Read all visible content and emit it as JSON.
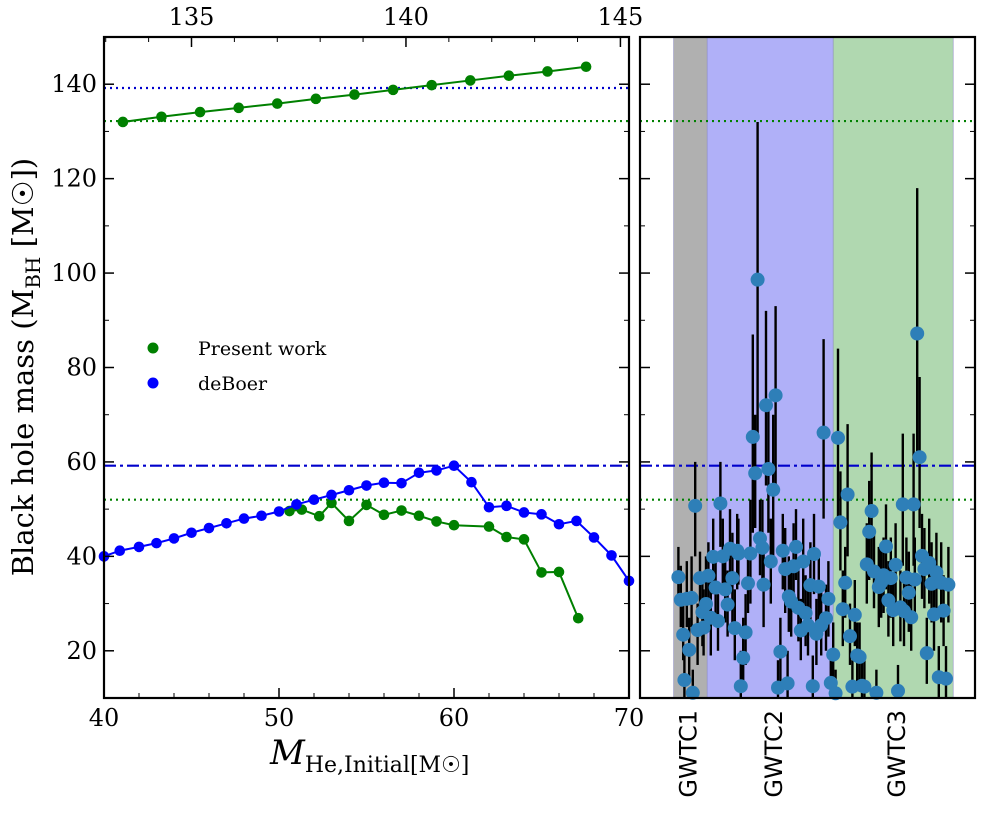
{
  "chart_data": [
    {
      "type": "line",
      "ylabel": "Black hole mass (M",
      "ylabel_sub": "BH",
      "ylabel_unit": "[M",
      "ylabel_sun": "☉",
      "ylabel_end": "])",
      "xlabel": "M",
      "xlabel_sub": "He,Initial[M",
      "xlabel_sun": "☉",
      "xlabel_end": "]",
      "xlim": [
        40,
        70
      ],
      "ylim": [
        10,
        150
      ],
      "xticks": [
        40,
        50,
        60,
        70
      ],
      "yticks": [
        20,
        40,
        60,
        80,
        100,
        120,
        140
      ],
      "top_xlim": [
        132.96,
        145.2
      ],
      "top_xticks": [
        135,
        140,
        145
      ],
      "legend_position": "center-left",
      "series": [
        {
          "name": "Present work",
          "color": "#008000",
          "points": [
            [
              50.6,
              49.6
            ],
            [
              51.3,
              49.9
            ],
            [
              52.3,
              48.5
            ],
            [
              53.0,
              51.3
            ],
            [
              54.0,
              47.5
            ],
            [
              55.0,
              50.9
            ],
            [
              56.0,
              48.8
            ],
            [
              57.0,
              49.7
            ],
            [
              58.0,
              48.6
            ],
            [
              59.0,
              47.4
            ],
            [
              60.0,
              46.6
            ],
            [
              62.0,
              46.3
            ],
            [
              63.0,
              44.1
            ],
            [
              64.0,
              43.6
            ],
            [
              65.0,
              36.6
            ],
            [
              66.0,
              36.7
            ],
            [
              67.1,
              26.9
            ]
          ]
        },
        {
          "name": "deBoer",
          "color": "#0000ff",
          "points": [
            [
              40.0,
              40.0
            ],
            [
              40.9,
              41.2
            ],
            [
              42.0,
              42.0
            ],
            [
              43.0,
              42.8
            ],
            [
              44.0,
              43.8
            ],
            [
              45.0,
              45.0
            ],
            [
              46.0,
              46.0
            ],
            [
              47.0,
              47.0
            ],
            [
              48.0,
              48.0
            ],
            [
              49.0,
              48.6
            ],
            [
              50.0,
              49.5
            ],
            [
              51.0,
              51.0
            ],
            [
              52.0,
              52.0
            ],
            [
              53.0,
              53.0
            ],
            [
              54.0,
              54.0
            ],
            [
              55.0,
              55.0
            ],
            [
              56.0,
              55.6
            ],
            [
              57.0,
              55.5
            ],
            [
              58.0,
              57.7
            ],
            [
              59.0,
              58.2
            ],
            [
              60.0,
              59.2
            ],
            [
              61.0,
              55.7
            ],
            [
              62.0,
              50.4
            ],
            [
              63.0,
              50.7
            ],
            [
              64.0,
              49.3
            ],
            [
              65.0,
              48.9
            ],
            [
              66.0,
              46.8
            ],
            [
              67.0,
              47.5
            ],
            [
              68.0,
              44.0
            ],
            [
              69.0,
              40.2
            ],
            [
              70.0,
              34.8
            ]
          ]
        },
        {
          "name": "",
          "axis": "top",
          "color": "#008000",
          "points": [
            [
              133.4,
              132.0
            ],
            [
              134.3,
              133.1
            ],
            [
              135.2,
              134.1
            ],
            [
              136.1,
              135.0
            ],
            [
              137.0,
              135.9
            ],
            [
              137.9,
              136.9
            ],
            [
              138.8,
              137.8
            ],
            [
              139.7,
              138.8
            ],
            [
              140.6,
              139.8
            ],
            [
              141.5,
              140.8
            ],
            [
              142.4,
              141.8
            ],
            [
              143.3,
              142.7
            ],
            [
              144.2,
              143.7
            ]
          ]
        }
      ],
      "hlines": [
        {
          "y": 139.2,
          "style": "dotted",
          "color": "#0000cc"
        },
        {
          "y": 132.2,
          "style": "dotted",
          "color": "#008000"
        },
        {
          "y": 59.2,
          "style": "dashdot",
          "color": "#0000cc"
        },
        {
          "y": 52.0,
          "style": "dotted",
          "color": "#008000"
        }
      ]
    },
    {
      "type": "scatter",
      "ylim": [
        10,
        150
      ],
      "xlim": [
        0,
        10
      ],
      "error_bar_color": "#000000",
      "marker_color": "#2e7fb8",
      "bands": [
        {
          "label": "GWTC1",
          "x0": 0.18,
          "x1": 0.46,
          "color": "#b0b0b0"
        },
        {
          "label": "GWTC2",
          "x0": 0.46,
          "x1": 1.51,
          "color": "#b0b0f8"
        },
        {
          "label": "GWTC3",
          "x0": 1.51,
          "x1": 2.51,
          "color": "#b0d8b0"
        }
      ],
      "hlines": [
        {
          "y": 132.2,
          "style": "dotted",
          "color": "#008000"
        },
        {
          "y": 59.2,
          "style": "dashdot",
          "color": "#0000cc"
        },
        {
          "y": 52.0,
          "style": "dotted",
          "color": "#008000"
        }
      ],
      "events": [
        [
          0.22,
          35.6,
          31,
          42
        ],
        [
          0.24,
          30.8,
          25,
          38
        ],
        [
          0.26,
          23.4,
          18,
          30
        ],
        [
          0.27,
          13.8,
          10,
          19
        ],
        [
          0.29,
          31.0,
          25,
          39
        ],
        [
          0.31,
          20.2,
          14,
          27
        ],
        [
          0.33,
          31.2,
          25,
          40
        ],
        [
          0.34,
          11.1,
          9,
          16
        ],
        [
          0.36,
          50.7,
          40,
          60
        ],
        [
          0.38,
          24.4,
          17,
          30
        ],
        [
          0.4,
          35.4,
          28,
          41
        ],
        [
          0.42,
          28.2,
          21,
          35
        ],
        [
          0.43,
          24.9,
          19,
          33
        ],
        [
          0.45,
          29.9,
          24,
          40
        ],
        [
          0.47,
          35.9,
          28,
          43
        ],
        [
          0.49,
          27.0,
          19,
          37
        ],
        [
          0.51,
          39.9,
          32,
          48
        ],
        [
          0.53,
          33.4,
          26,
          40
        ],
        [
          0.55,
          26.3,
          20,
          32
        ],
        [
          0.57,
          51.2,
          42,
          60
        ],
        [
          0.59,
          40.0,
          33,
          48
        ],
        [
          0.61,
          33.0,
          26,
          40
        ],
        [
          0.63,
          29.8,
          23,
          37
        ],
        [
          0.65,
          41.6,
          33,
          50
        ],
        [
          0.67,
          35.4,
          25,
          45
        ],
        [
          0.69,
          24.8,
          18,
          33
        ],
        [
          0.71,
          41.2,
          33,
          49
        ],
        [
          0.72,
          40.6,
          34,
          48
        ],
        [
          0.74,
          12.5,
          10,
          20
        ],
        [
          0.76,
          18.5,
          12,
          27
        ],
        [
          0.78,
          23.9,
          17,
          32
        ],
        [
          0.8,
          34.3,
          28,
          40
        ],
        [
          0.82,
          40.6,
          30,
          52
        ],
        [
          0.84,
          65.3,
          45,
          87
        ],
        [
          0.86,
          57.6,
          46,
          70
        ],
        [
          0.88,
          98.6,
          66,
          132
        ],
        [
          0.9,
          43.8,
          36,
          52
        ],
        [
          0.92,
          41.8,
          33,
          52
        ],
        [
          0.93,
          34.0,
          25,
          43
        ],
        [
          0.95,
          72.0,
          55,
          92
        ],
        [
          0.97,
          58.5,
          45,
          72
        ],
        [
          0.99,
          38.9,
          30,
          48
        ],
        [
          1.01,
          54.1,
          40,
          70
        ],
        [
          1.03,
          74.1,
          55,
          93
        ],
        [
          1.05,
          12.2,
          9,
          18
        ],
        [
          1.07,
          19.8,
          13,
          27
        ],
        [
          1.09,
          41.2,
          33,
          49
        ],
        [
          1.11,
          37.3,
          28,
          46
        ],
        [
          1.13,
          13.1,
          9,
          20
        ],
        [
          1.14,
          31.5,
          24,
          40
        ],
        [
          1.16,
          30.4,
          23,
          38
        ],
        [
          1.18,
          37.9,
          29,
          47
        ],
        [
          1.2,
          42.0,
          35,
          50
        ],
        [
          1.22,
          29.1,
          22,
          37
        ],
        [
          1.24,
          24.3,
          18,
          31
        ],
        [
          1.26,
          38.9,
          30,
          48
        ],
        [
          1.28,
          28.0,
          21,
          36
        ],
        [
          1.3,
          25.4,
          19,
          33
        ],
        [
          1.32,
          33.9,
          25,
          43
        ],
        [
          1.34,
          12.5,
          9,
          19
        ],
        [
          1.35,
          40.5,
          32,
          49
        ],
        [
          1.37,
          23.6,
          17,
          31
        ],
        [
          1.39,
          33.6,
          25,
          41
        ],
        [
          1.41,
          25.4,
          19,
          33
        ],
        [
          1.43,
          66.2,
          48,
          86
        ],
        [
          1.45,
          26.9,
          20,
          34
        ],
        [
          1.47,
          31.0,
          23,
          39
        ],
        [
          1.49,
          13.2,
          9,
          19
        ],
        [
          1.51,
          19.2,
          13,
          26
        ],
        [
          1.53,
          11.0,
          9,
          16
        ],
        [
          1.55,
          65.1,
          48,
          84
        ],
        [
          1.57,
          47.2,
          37,
          58
        ],
        [
          1.59,
          28.8,
          21,
          37
        ],
        [
          1.61,
          34.4,
          27,
          42
        ],
        [
          1.63,
          53.1,
          40,
          68
        ],
        [
          1.65,
          23.1,
          17,
          30
        ],
        [
          1.67,
          12.4,
          9,
          18
        ],
        [
          1.69,
          27.6,
          21,
          35
        ],
        [
          1.71,
          19.0,
          13,
          26
        ],
        [
          1.73,
          18.7,
          13,
          26
        ],
        [
          1.75,
          12.6,
          9,
          19
        ],
        [
          1.77,
          12.4,
          9,
          18
        ],
        [
          1.79,
          38.3,
          30,
          47
        ],
        [
          1.81,
          45.2,
          35,
          56
        ],
        [
          1.83,
          49.6,
          38,
          62
        ],
        [
          1.85,
          36.8,
          29,
          45
        ],
        [
          1.87,
          11.1,
          9,
          16
        ],
        [
          1.89,
          33.5,
          25,
          42
        ],
        [
          1.91,
          34.5,
          27,
          42
        ],
        [
          1.93,
          36.0,
          28,
          44
        ],
        [
          1.95,
          42.1,
          33,
          51
        ],
        [
          1.97,
          30.7,
          23,
          39
        ],
        [
          1.99,
          35.4,
          27,
          44
        ],
        [
          2.01,
          28.6,
          21,
          36
        ],
        [
          2.03,
          38.2,
          30,
          47
        ],
        [
          2.05,
          11.5,
          9,
          17
        ],
        [
          2.07,
          29.2,
          22,
          37
        ],
        [
          2.09,
          51.0,
          38,
          66
        ],
        [
          2.1,
          28.4,
          21,
          36
        ],
        [
          2.12,
          35.5,
          27,
          44
        ],
        [
          2.14,
          32.3,
          24,
          41
        ],
        [
          2.16,
          27.1,
          20,
          35
        ],
        [
          2.18,
          51.0,
          38,
          66
        ],
        [
          2.19,
          35.1,
          27,
          44
        ],
        [
          2.21,
          87.2,
          60,
          118
        ],
        [
          2.23,
          61.0,
          46,
          78
        ],
        [
          2.25,
          40.1,
          31,
          49
        ],
        [
          2.27,
          37.3,
          29,
          46
        ],
        [
          2.29,
          19.5,
          13,
          27
        ],
        [
          2.31,
          38.6,
          30,
          48
        ],
        [
          2.33,
          34.2,
          26,
          43
        ],
        [
          2.35,
          27.7,
          20,
          36
        ],
        [
          2.37,
          36.6,
          28,
          45
        ],
        [
          2.39,
          14.4,
          10,
          21
        ],
        [
          2.41,
          34.4,
          26,
          43
        ],
        [
          2.43,
          28.5,
          21,
          36
        ],
        [
          2.45,
          14.1,
          9,
          21
        ],
        [
          2.47,
          34.0,
          26,
          42
        ]
      ]
    }
  ],
  "legend": [
    {
      "label": "Present work",
      "color": "#008000"
    },
    {
      "label": "deBoer",
      "color": "#0000ff"
    }
  ],
  "band_labels": [
    "GWTC1",
    "GWTC2",
    "GWTC3"
  ]
}
